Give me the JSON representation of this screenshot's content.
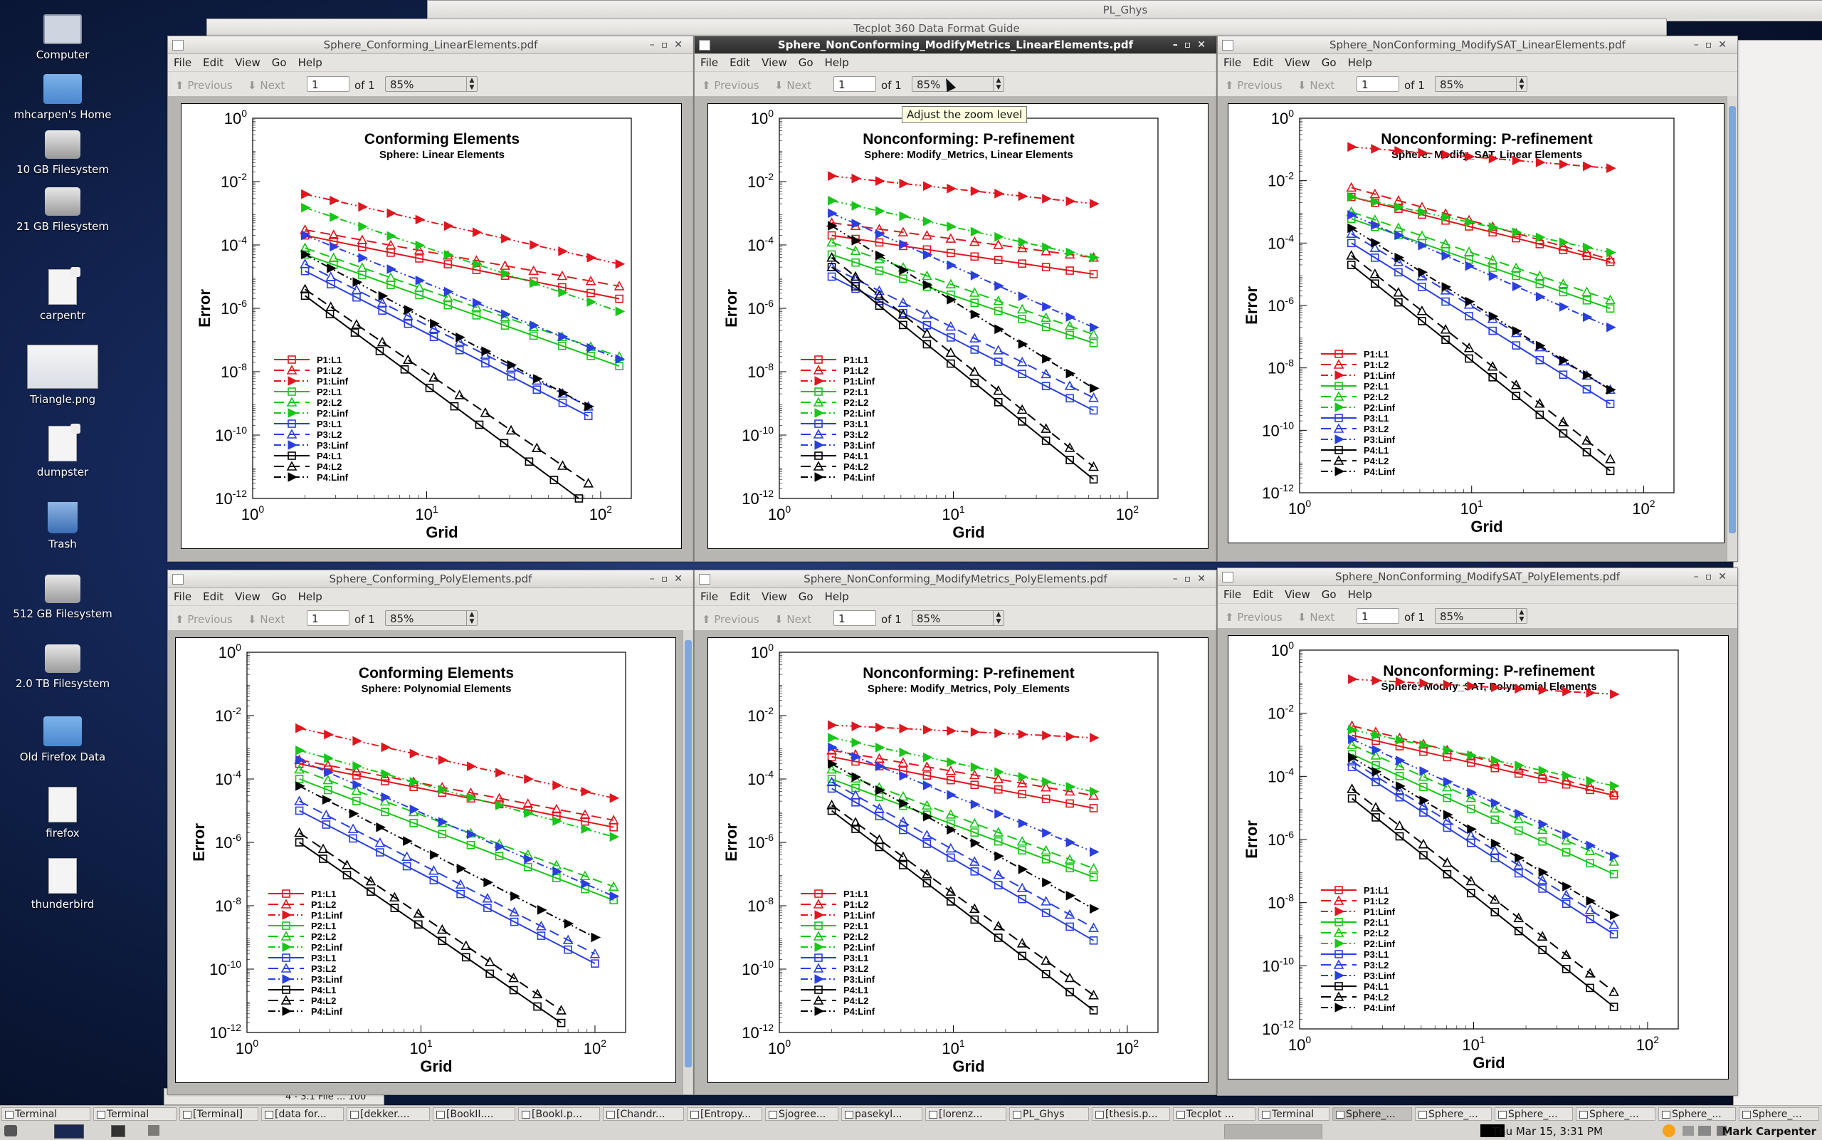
{
  "desktop": {
    "icons": [
      {
        "label": "Computer"
      },
      {
        "label": "mhcarpen's Home"
      },
      {
        "label": "10 GB Filesystem"
      },
      {
        "label": "21 GB Filesystem"
      },
      {
        "label": "carpentr"
      },
      {
        "label": "Triangle.png"
      },
      {
        "label": "dumpster"
      },
      {
        "label": "Trash"
      },
      {
        "label": "512 GB Filesystem"
      },
      {
        "label": "2.0 TB Filesystem"
      },
      {
        "label": "Old Firefox Data"
      },
      {
        "label": "firefox"
      },
      {
        "label": "thunderbird"
      }
    ]
  },
  "background_windows": {
    "pl_ghys": "PL_Ghys",
    "tecplot_guide": "Tecplot 360 Data Format Guide",
    "terminal_fragment": "4 - 3.1 File ... 100"
  },
  "viewer": {
    "menu": [
      "File",
      "Edit",
      "View",
      "Go",
      "Help"
    ],
    "previous": "Previous",
    "next": "Next",
    "page_value": "1",
    "of_label": "of 1",
    "zoom": "85%",
    "tooltip": "Adjust the zoom level"
  },
  "windows": [
    {
      "title": "Sphere_Conforming_LinearElements.pdf"
    },
    {
      "title": "Sphere_NonConforming_ModifyMetrics_LinearElements.pdf"
    },
    {
      "title": "Sphere_NonConforming_ModifySAT_LinearElements.pdf"
    },
    {
      "title": "Sphere_Conforming_PolyElements.pdf"
    },
    {
      "title": "Sphere_NonConforming_ModifyMetrics_PolyElements.pdf"
    },
    {
      "title": "Sphere_NonConforming_ModifySAT_PolyElements.pdf"
    }
  ],
  "chart_data": [
    {
      "type": "line",
      "title": "Conforming Elements",
      "subtitle": "Sphere:  Linear Elements",
      "xlabel": "Grid",
      "ylabel": "Error",
      "xscale": "log",
      "yscale": "log",
      "xlim": [
        1,
        150
      ],
      "ylim": [
        1e-12,
        1
      ],
      "xticks": [
        "10^0",
        "10^1",
        "10^2"
      ],
      "yticks": [
        "10^0",
        "10^-2",
        "10^-4",
        "10^-6",
        "10^-8",
        "10^-10",
        "10^-12"
      ],
      "legend": "bottom-left",
      "series": [
        {
          "name": "P1:L1",
          "x": [
            2,
            128
          ],
          "y": [
            0.0002,
            2e-06
          ]
        },
        {
          "name": "P1:L2",
          "x": [
            2,
            128
          ],
          "y": [
            0.0003,
            5e-06
          ]
        },
        {
          "name": "P1:Linf",
          "x": [
            2,
            128
          ],
          "y": [
            0.004,
            2.5e-05
          ]
        },
        {
          "name": "P2:L1",
          "x": [
            2,
            128
          ],
          "y": [
            5e-05,
            1.5e-08
          ]
        },
        {
          "name": "P2:L2",
          "x": [
            2,
            128
          ],
          "y": [
            8e-05,
            3e-08
          ]
        },
        {
          "name": "P2:Linf",
          "x": [
            2,
            128
          ],
          "y": [
            0.0015,
            8e-07
          ]
        },
        {
          "name": "P3:L1",
          "x": [
            2,
            85
          ],
          "y": [
            1.5e-05,
            4e-10
          ]
        },
        {
          "name": "P3:L2",
          "x": [
            2,
            85
          ],
          "y": [
            2.5e-05,
            8e-10
          ]
        },
        {
          "name": "P3:Linf",
          "x": [
            2,
            128
          ],
          "y": [
            0.0002,
            2.5e-08
          ]
        },
        {
          "name": "P4:L1",
          "x": [
            2,
            75
          ],
          "y": [
            2.5e-06,
            1e-12
          ]
        },
        {
          "name": "P4:L2",
          "x": [
            2,
            85
          ],
          "y": [
            4e-06,
            3e-12
          ]
        },
        {
          "name": "P4:Linf",
          "x": [
            2,
            85
          ],
          "y": [
            5e-05,
            8e-10
          ]
        }
      ]
    },
    {
      "type": "line",
      "title": "Nonconforming: P-refinement",
      "subtitle": "Sphere:  Modify_Metrics, Linear Elements",
      "xlabel": "Grid",
      "ylabel": "Error",
      "xscale": "log",
      "yscale": "log",
      "xlim": [
        1,
        150
      ],
      "ylim": [
        1e-12,
        1
      ],
      "xticks": [
        "10^0",
        "10^1",
        "10^2"
      ],
      "yticks": [
        "10^0",
        "10^-2",
        "10^-4",
        "10^-6",
        "10^-8",
        "10^-10",
        "10^-12"
      ],
      "legend": "bottom-left",
      "series": [
        {
          "name": "P1:L1",
          "x": [
            2,
            64
          ],
          "y": [
            0.0002,
            1.2e-05
          ]
        },
        {
          "name": "P1:L2",
          "x": [
            2,
            64
          ],
          "y": [
            0.0005,
            4e-05
          ]
        },
        {
          "name": "P1:Linf",
          "x": [
            2,
            64
          ],
          "y": [
            0.015,
            0.002
          ]
        },
        {
          "name": "P2:L1",
          "x": [
            2,
            64
          ],
          "y": [
            5e-05,
            8e-08
          ]
        },
        {
          "name": "P2:L2",
          "x": [
            2,
            64
          ],
          "y": [
            0.00012,
            1.5e-07
          ]
        },
        {
          "name": "P2:Linf",
          "x": [
            2,
            64
          ],
          "y": [
            0.0025,
            4e-05
          ]
        },
        {
          "name": "P3:L1",
          "x": [
            2,
            64
          ],
          "y": [
            1e-05,
            6e-10
          ]
        },
        {
          "name": "P3:L2",
          "x": [
            2,
            64
          ],
          "y": [
            2e-05,
            1.5e-09
          ]
        },
        {
          "name": "P3:Linf",
          "x": [
            2,
            64
          ],
          "y": [
            0.001,
            2.5e-07
          ]
        },
        {
          "name": "P4:L1",
          "x": [
            2,
            64
          ],
          "y": [
            2e-05,
            4e-12
          ]
        },
        {
          "name": "P4:L2",
          "x": [
            2,
            64
          ],
          "y": [
            4e-05,
            1e-11
          ]
        },
        {
          "name": "P4:Linf",
          "x": [
            2,
            64
          ],
          "y": [
            0.0004,
            3e-09
          ]
        }
      ]
    },
    {
      "type": "line",
      "title": "Nonconforming: P-refinement",
      "subtitle": "Sphere:  Modify_SAT, Linear Elements",
      "xlabel": "Grid",
      "ylabel": "Error",
      "xscale": "log",
      "yscale": "log",
      "xlim": [
        1,
        150
      ],
      "ylim": [
        1e-12,
        1
      ],
      "xticks": [
        "10^0",
        "10^1",
        "10^2"
      ],
      "yticks": [
        "10^0",
        "10^-2",
        "10^-4",
        "10^-6",
        "10^-8",
        "10^-10",
        "10^-12"
      ],
      "legend": "bottom-left",
      "series": [
        {
          "name": "P1:L1",
          "x": [
            2,
            64
          ],
          "y": [
            0.003,
            2.5e-05
          ]
        },
        {
          "name": "P1:L2",
          "x": [
            2,
            64
          ],
          "y": [
            0.006,
            3e-05
          ]
        },
        {
          "name": "P1:Linf",
          "x": [
            2,
            64
          ],
          "y": [
            0.12,
            0.025
          ]
        },
        {
          "name": "P2:L1",
          "x": [
            2,
            64
          ],
          "y": [
            0.0006,
            8e-07
          ]
        },
        {
          "name": "P2:L2",
          "x": [
            2,
            64
          ],
          "y": [
            0.001,
            1.5e-06
          ]
        },
        {
          "name": "P2:Linf",
          "x": [
            2,
            64
          ],
          "y": [
            0.003,
            5e-05
          ]
        },
        {
          "name": "P3:L1",
          "x": [
            2,
            64
          ],
          "y": [
            0.0001,
            7e-10
          ]
        },
        {
          "name": "P3:L2",
          "x": [
            2,
            64
          ],
          "y": [
            0.0002,
            2e-09
          ]
        },
        {
          "name": "P3:Linf",
          "x": [
            2,
            64
          ],
          "y": [
            0.0008,
            2e-07
          ]
        },
        {
          "name": "P4:L1",
          "x": [
            2,
            64
          ],
          "y": [
            2e-05,
            5e-12
          ]
        },
        {
          "name": "P4:L2",
          "x": [
            2,
            64
          ],
          "y": [
            4e-05,
            1.2e-11
          ]
        },
        {
          "name": "P4:Linf",
          "x": [
            2,
            64
          ],
          "y": [
            0.0003,
            2e-09
          ]
        }
      ]
    },
    {
      "type": "line",
      "title": "Conforming Elements",
      "subtitle": "Sphere:  Polynomial Elements",
      "xlabel": "Grid",
      "ylabel": "Error",
      "xscale": "log",
      "yscale": "log",
      "xlim": [
        1,
        150
      ],
      "ylim": [
        1e-12,
        1
      ],
      "xticks": [
        "10^0",
        "10^1",
        "10^2"
      ],
      "yticks": [
        "10^0",
        "10^-2",
        "10^-4",
        "10^-6",
        "10^-8",
        "10^-10",
        "10^-12"
      ],
      "legend": "bottom-left",
      "series": [
        {
          "name": "P1:L1",
          "x": [
            2,
            128
          ],
          "y": [
            0.0003,
            3e-06
          ]
        },
        {
          "name": "P1:L2",
          "x": [
            2,
            128
          ],
          "y": [
            0.0004,
            5e-06
          ]
        },
        {
          "name": "P1:Linf",
          "x": [
            2,
            128
          ],
          "y": [
            0.004,
            2.5e-05
          ]
        },
        {
          "name": "P2:L1",
          "x": [
            2,
            128
          ],
          "y": [
            0.0001,
            1.5e-08
          ]
        },
        {
          "name": "P2:L2",
          "x": [
            2,
            128
          ],
          "y": [
            0.0002,
            4e-08
          ]
        },
        {
          "name": "P2:Linf",
          "x": [
            2,
            128
          ],
          "y": [
            0.0008,
            1.5e-06
          ]
        },
        {
          "name": "P3:L1",
          "x": [
            2,
            100
          ],
          "y": [
            1e-05,
            1.5e-10
          ]
        },
        {
          "name": "P3:L2",
          "x": [
            2,
            100
          ],
          "y": [
            2e-05,
            3e-10
          ]
        },
        {
          "name": "P3:Linf",
          "x": [
            2,
            128
          ],
          "y": [
            0.0004,
            2e-08
          ]
        },
        {
          "name": "P4:L1",
          "x": [
            2,
            64
          ],
          "y": [
            1e-06,
            2e-12
          ]
        },
        {
          "name": "P4:L2",
          "x": [
            2,
            64
          ],
          "y": [
            2e-06,
            5e-12
          ]
        },
        {
          "name": "P4:Linf",
          "x": [
            2,
            100
          ],
          "y": [
            6e-05,
            1e-09
          ]
        }
      ]
    },
    {
      "type": "line",
      "title": "Nonconforming: P-refinement",
      "subtitle": "Sphere:  Modify_Metrics, Poly_Elements",
      "xlabel": "Grid",
      "ylabel": "Error",
      "xscale": "log",
      "yscale": "log",
      "xlim": [
        1,
        150
      ],
      "ylim": [
        1e-12,
        1
      ],
      "xticks": [
        "10^0",
        "10^1",
        "10^2"
      ],
      "yticks": [
        "10^0",
        "10^-2",
        "10^-4",
        "10^-6",
        "10^-8",
        "10^-10",
        "10^-12"
      ],
      "legend": "bottom-left",
      "series": [
        {
          "name": "P1:L1",
          "x": [
            2,
            64
          ],
          "y": [
            0.0005,
            1.2e-05
          ]
        },
        {
          "name": "P1:L2",
          "x": [
            2,
            64
          ],
          "y": [
            0.0008,
            3e-05
          ]
        },
        {
          "name": "P1:Linf",
          "x": [
            2,
            64
          ],
          "y": [
            0.005,
            0.002
          ]
        },
        {
          "name": "P2:L1",
          "x": [
            2,
            64
          ],
          "y": [
            0.0001,
            8e-08
          ]
        },
        {
          "name": "P2:L2",
          "x": [
            2,
            64
          ],
          "y": [
            0.0002,
            1.5e-07
          ]
        },
        {
          "name": "P2:Linf",
          "x": [
            2,
            64
          ],
          "y": [
            0.002,
            4e-05
          ]
        },
        {
          "name": "P3:L1",
          "x": [
            2,
            64
          ],
          "y": [
            5e-05,
            8e-10
          ]
        },
        {
          "name": "P3:L2",
          "x": [
            2,
            64
          ],
          "y": [
            8e-05,
            2e-09
          ]
        },
        {
          "name": "P3:Linf",
          "x": [
            2,
            64
          ],
          "y": [
            0.001,
            5e-07
          ]
        },
        {
          "name": "P4:L1",
          "x": [
            2,
            64
          ],
          "y": [
            1e-05,
            5e-12
          ]
        },
        {
          "name": "P4:L2",
          "x": [
            2,
            64
          ],
          "y": [
            1.5e-05,
            1.5e-11
          ]
        },
        {
          "name": "P4:Linf",
          "x": [
            2,
            64
          ],
          "y": [
            0.0003,
            8e-09
          ]
        }
      ]
    },
    {
      "type": "line",
      "title": "Nonconforming: P-refinement",
      "subtitle": "Sphere:  Modify_SAT, Polynomial Elements",
      "xlabel": "Grid",
      "ylabel": "Error",
      "xscale": "log",
      "yscale": "log",
      "xlim": [
        1,
        150
      ],
      "ylim": [
        1e-12,
        1
      ],
      "xticks": [
        "10^0",
        "10^1",
        "10^2"
      ],
      "yticks": [
        "10^0",
        "10^-2",
        "10^-4",
        "10^-6",
        "10^-8",
        "10^-10",
        "10^-12"
      ],
      "legend": "bottom-left",
      "series": [
        {
          "name": "P1:L1",
          "x": [
            2,
            64
          ],
          "y": [
            0.002,
            2.5e-05
          ]
        },
        {
          "name": "P1:L2",
          "x": [
            2,
            64
          ],
          "y": [
            0.004,
            3e-05
          ]
        },
        {
          "name": "P1:Linf",
          "x": [
            2,
            64
          ],
          "y": [
            0.12,
            0.04
          ]
        },
        {
          "name": "P2:L1",
          "x": [
            2,
            64
          ],
          "y": [
            0.0005,
            8e-08
          ]
        },
        {
          "name": "P2:L2",
          "x": [
            2,
            64
          ],
          "y": [
            0.001,
            2e-07
          ]
        },
        {
          "name": "P2:Linf",
          "x": [
            2,
            64
          ],
          "y": [
            0.003,
            5e-05
          ]
        },
        {
          "name": "P3:L1",
          "x": [
            2,
            64
          ],
          "y": [
            0.0002,
            1e-09
          ]
        },
        {
          "name": "P3:L2",
          "x": [
            2,
            64
          ],
          "y": [
            0.0003,
            2e-09
          ]
        },
        {
          "name": "P3:Linf",
          "x": [
            2,
            64
          ],
          "y": [
            0.0015,
            3e-07
          ]
        },
        {
          "name": "P4:L1",
          "x": [
            2,
            64
          ],
          "y": [
            2e-05,
            5e-12
          ]
        },
        {
          "name": "P4:L2",
          "x": [
            2,
            64
          ],
          "y": [
            4e-05,
            1.5e-11
          ]
        },
        {
          "name": "P4:Linf",
          "x": [
            2,
            64
          ],
          "y": [
            0.0004,
            4e-09
          ]
        }
      ]
    }
  ],
  "series_styles": {
    "P1": {
      "color": "#e0161e"
    },
    "P2": {
      "color": "#17c617"
    },
    "P3": {
      "color": "#2a3fe0"
    },
    "P4": {
      "color": "#000000"
    },
    "L1": {
      "marker": "square",
      "dash": "solid"
    },
    "L2": {
      "marker": "triangle-up",
      "dash": "dashed"
    },
    "Linf": {
      "marker": "triangle-right",
      "dash": "dash-dot-dot"
    }
  },
  "taskbar": {
    "tasks": [
      {
        "label": "Terminal"
      },
      {
        "label": "Terminal"
      },
      {
        "label": "[Terminal]"
      },
      {
        "label": "[data for..."
      },
      {
        "label": "[dekker...."
      },
      {
        "label": "[BookII...."
      },
      {
        "label": "[BookI.p..."
      },
      {
        "label": "[Chandr..."
      },
      {
        "label": "[Entropy..."
      },
      {
        "label": "Sjogree..."
      },
      {
        "label": "pasekyl..."
      },
      {
        "label": "[lorenz..."
      },
      {
        "label": "PL_Ghys"
      },
      {
        "label": "[thesis.p..."
      },
      {
        "label": "Tecplot ..."
      },
      {
        "label": "Terminal"
      },
      {
        "label": "Sphere_..."
      },
      {
        "label": "Sphere_..."
      },
      {
        "label": "Sphere_..."
      },
      {
        "label": "Sphere_..."
      },
      {
        "label": "Sphere_..."
      },
      {
        "label": "Sphere_..."
      }
    ],
    "active_task": 16,
    "clock": "Thu Mar 15,  3:31 PM",
    "user": "Mark Carpenter"
  }
}
